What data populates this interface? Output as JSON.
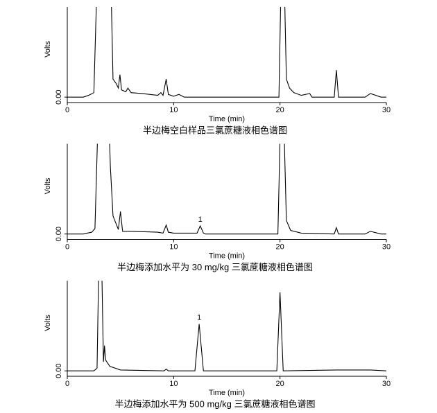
{
  "chart_data": [
    {
      "type": "line",
      "title": "半边梅空白样品三氯蔗糖液相色谱图",
      "xlabel": "Time (min)",
      "ylabel": "Volts",
      "xlim": [
        0,
        30
      ],
      "xticks": [
        0,
        10,
        20,
        30
      ],
      "ylim": [
        -0.06,
        1
      ],
      "yticks": [
        {
          "value": 0,
          "label": "0.00"
        }
      ],
      "x": [
        0,
        1.5,
        2.0,
        2.5,
        2.8,
        4.1,
        4.3,
        4.6,
        4.8,
        4.95,
        5.1,
        5.5,
        5.7,
        6.0,
        7.0,
        8.5,
        8.8,
        9.0,
        9.3,
        9.5,
        10,
        10.5,
        11,
        19.9,
        20.1,
        20.4,
        20.6,
        20.9,
        21.3,
        22,
        22.8,
        23,
        25.1,
        25.3,
        25.5,
        28,
        28.5,
        29.5,
        30
      ],
      "series": [
        {
          "color": "#000000",
          "values": [
            0,
            0,
            0.02,
            0.05,
            1.3,
            1.3,
            0.2,
            0.15,
            0.1,
            0.25,
            0.08,
            0.06,
            0.1,
            0.05,
            0.04,
            0.02,
            0.05,
            0.02,
            0.2,
            0.03,
            0.01,
            0.03,
            0,
            0,
            1.3,
            1.3,
            0.2,
            0.1,
            0.05,
            0.02,
            0.04,
            0,
            0,
            0.3,
            0,
            0,
            0.04,
            0,
            0
          ]
        }
      ],
      "annotations": []
    },
    {
      "type": "line",
      "title": "半边梅添加水平为 30 mg/kg 三氯蔗糖液相色谱图",
      "xlabel": "Time (min)",
      "ylabel": "Volts",
      "xlim": [
        0,
        30
      ],
      "xticks": [
        0,
        10,
        20,
        30
      ],
      "ylim": [
        -0.06,
        1
      ],
      "yticks": [
        {
          "value": 0,
          "label": "0.00"
        }
      ],
      "x": [
        0,
        1.5,
        2.3,
        2.6,
        2.9,
        3.9,
        4.05,
        4.3,
        4.8,
        5.0,
        5.2,
        6.0,
        8.5,
        9.0,
        9.3,
        9.5,
        10,
        12.2,
        12.5,
        12.8,
        13,
        19.8,
        20.05,
        20.35,
        20.6,
        21,
        22,
        25.1,
        25.3,
        25.5,
        28,
        28.5,
        29.5,
        30
      ],
      "series": [
        {
          "color": "#000000",
          "values": [
            0,
            0,
            0.02,
            0.06,
            1.3,
            1.3,
            0.75,
            0.2,
            0.05,
            0.25,
            0.03,
            0.03,
            0.02,
            0.01,
            0.1,
            0.02,
            0.01,
            0.01,
            0.09,
            0.01,
            0,
            0,
            1.3,
            1.3,
            0.15,
            0.04,
            0.01,
            0,
            0.07,
            0,
            0,
            0.03,
            0,
            0
          ]
        }
      ],
      "annotations": [
        {
          "text": "1",
          "x": 12.5,
          "y": 0.09
        }
      ]
    },
    {
      "type": "line",
      "title": "半边梅添加水平为 500 mg/kg 三氯蔗糖液相色谱图",
      "xlabel": "Time (min)",
      "ylabel": "Volts",
      "xlim": [
        0,
        30
      ],
      "xticks": [
        0,
        10,
        20,
        30
      ],
      "ylim": [
        -0.06,
        1
      ],
      "yticks": [
        {
          "value": 0,
          "label": "0.00"
        }
      ],
      "x": [
        0,
        2.5,
        2.8,
        2.95,
        3.25,
        3.4,
        3.5,
        3.6,
        4.0,
        5.0,
        9.1,
        9.3,
        9.5,
        12.0,
        12.4,
        12.8,
        19.7,
        20.0,
        20.3,
        25.3,
        28.5,
        30
      ],
      "series": [
        {
          "color": "#000000",
          "values": [
            0,
            0,
            0.03,
            1.1,
            1.1,
            0.1,
            0.28,
            0.12,
            0.05,
            0.01,
            0,
            0.02,
            0,
            0,
            0.52,
            0,
            0,
            0.87,
            0,
            0.01,
            0.01,
            0
          ]
        }
      ],
      "annotations": [
        {
          "text": "1",
          "x": 12.4,
          "y": 0.52
        }
      ]
    }
  ]
}
